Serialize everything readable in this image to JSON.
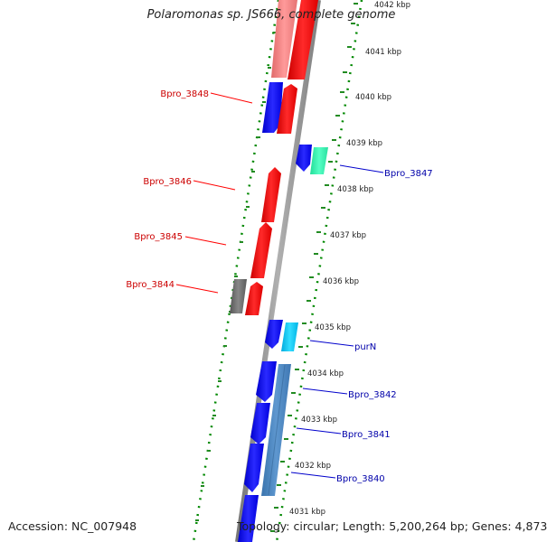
{
  "title": "Polaromonas sp. JS666, complete genome",
  "accession_text": "Accession: NC_007948",
  "summary_text": "Topology: circular; Length: 5,200,264 bp; Genes: 4,873",
  "ruler_ticks": [
    {
      "id": "t4042",
      "label": "4042 kbp"
    },
    {
      "id": "t4041",
      "label": "4041 kbp"
    },
    {
      "id": "t4040",
      "label": "4040 kbp"
    },
    {
      "id": "t4039",
      "label": "4039 kbp"
    },
    {
      "id": "t4038",
      "label": "4038 kbp"
    },
    {
      "id": "t4037",
      "label": "4037 kbp"
    },
    {
      "id": "t4036",
      "label": "4036 kbp"
    },
    {
      "id": "t4035",
      "label": "4035 kbp"
    },
    {
      "id": "t4034",
      "label": "4034 kbp"
    },
    {
      "id": "t4033",
      "label": "4033 kbp"
    },
    {
      "id": "t4032",
      "label": "4032 kbp"
    },
    {
      "id": "t4031",
      "label": "4031 kbp"
    }
  ],
  "gene_labels": {
    "bpro_3848": "Bpro_3848",
    "bpro_3847": "Bpro_3847",
    "bpro_3846": "Bpro_3846",
    "bpro_3845": "Bpro_3845",
    "bpro_3844": "Bpro_3844",
    "purN": "purN",
    "bpro_3842": "Bpro_3842",
    "bpro_3841": "Bpro_3841",
    "bpro_3840": "Bpro_3840"
  },
  "colors": {
    "forward_cds": "#ff0000",
    "reverse_cds": "#0000ff",
    "backbone": "#8c8c8c",
    "ruler_dots": "#008800",
    "left_label": "#cc0000",
    "right_label": "#0000aa"
  }
}
